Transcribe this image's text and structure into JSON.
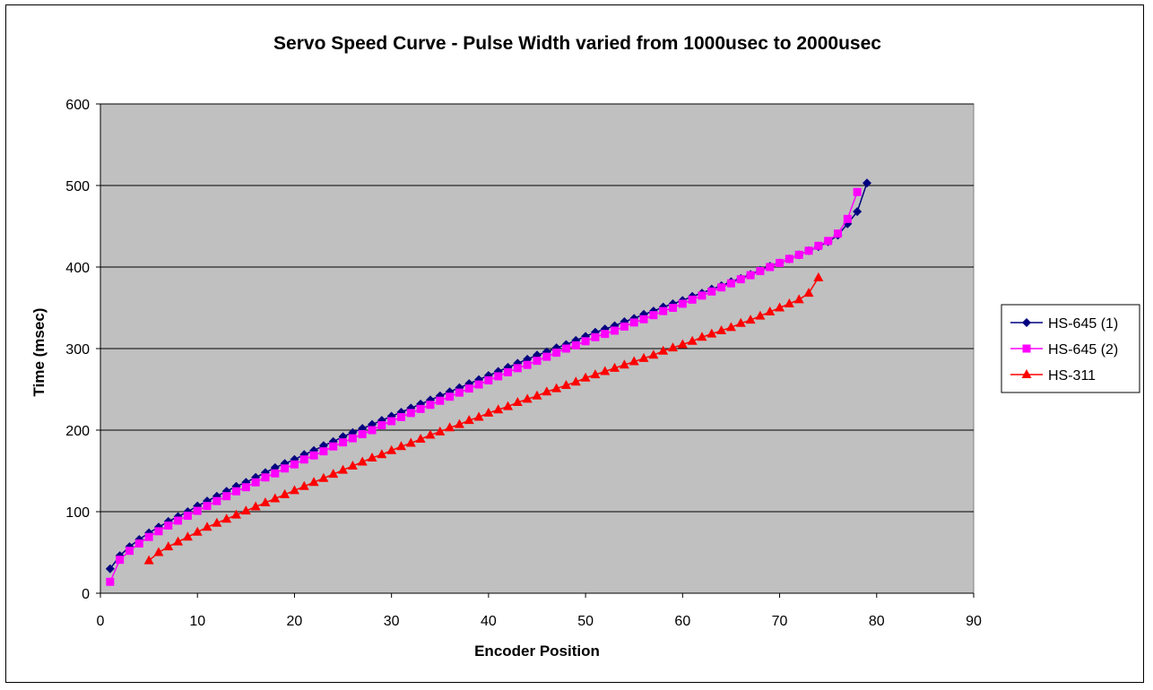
{
  "chart_data": {
    "type": "scatter",
    "title": "Servo Speed Curve - Pulse Width varied from 1000usec to 2000usec",
    "xlabel": "Encoder Position",
    "ylabel": "Time (msec)",
    "xlim": [
      0,
      90
    ],
    "ylim": [
      0,
      600
    ],
    "xticks": [
      "0",
      "10",
      "20",
      "30",
      "40",
      "50",
      "60",
      "70",
      "80",
      "90"
    ],
    "yticks": [
      "0",
      "100",
      "200",
      "300",
      "400",
      "500",
      "600"
    ],
    "plot_background": "#c0c0c0",
    "grid": "horizontal major lines",
    "legend_position": "right",
    "series": [
      {
        "name": "HS-645 (1)",
        "color": "#000080",
        "marker": "diamond",
        "x": [
          1,
          2,
          3,
          4,
          5,
          6,
          7,
          8,
          9,
          10,
          11,
          12,
          13,
          14,
          15,
          16,
          17,
          18,
          19,
          20,
          21,
          22,
          23,
          24,
          25,
          26,
          27,
          28,
          29,
          30,
          31,
          32,
          33,
          34,
          35,
          36,
          37,
          38,
          39,
          40,
          41,
          42,
          43,
          44,
          45,
          46,
          47,
          48,
          49,
          50,
          51,
          52,
          53,
          54,
          55,
          56,
          57,
          58,
          59,
          60,
          61,
          62,
          63,
          64,
          65,
          66,
          67,
          68,
          69,
          70,
          71,
          72,
          73,
          74,
          75,
          76,
          77,
          78,
          79
        ],
        "y": [
          30,
          46,
          57,
          66,
          74,
          81,
          88,
          94,
          100,
          107,
          113,
          119,
          125,
          131,
          136,
          142,
          148,
          154,
          159,
          164,
          170,
          175,
          181,
          186,
          192,
          197,
          202,
          207,
          212,
          217,
          222,
          227,
          232,
          237,
          242,
          247,
          252,
          257,
          262,
          267,
          272,
          277,
          282,
          287,
          292,
          296,
          301,
          305,
          310,
          315,
          320,
          324,
          328,
          333,
          337,
          342,
          346,
          351,
          355,
          359,
          364,
          368,
          373,
          377,
          382,
          386,
          391,
          396,
          401,
          405,
          410,
          415,
          420,
          425,
          431,
          439,
          453,
          468,
          503
        ]
      },
      {
        "name": "HS-645 (2)",
        "color": "#ff00ff",
        "marker": "square",
        "x": [
          1,
          2,
          3,
          4,
          5,
          6,
          7,
          8,
          9,
          10,
          11,
          12,
          13,
          14,
          15,
          16,
          17,
          18,
          19,
          20,
          21,
          22,
          23,
          24,
          25,
          26,
          27,
          28,
          29,
          30,
          31,
          32,
          33,
          34,
          35,
          36,
          37,
          38,
          39,
          40,
          41,
          42,
          43,
          44,
          45,
          46,
          47,
          48,
          49,
          50,
          51,
          52,
          53,
          54,
          55,
          56,
          57,
          58,
          59,
          60,
          61,
          62,
          63,
          64,
          65,
          66,
          67,
          68,
          69,
          70,
          71,
          72,
          73,
          74,
          75,
          76,
          77,
          78
        ],
        "y": [
          14,
          41,
          52,
          61,
          69,
          76,
          83,
          89,
          95,
          101,
          107,
          113,
          119,
          125,
          130,
          136,
          142,
          147,
          153,
          158,
          164,
          169,
          174,
          180,
          185,
          190,
          195,
          200,
          206,
          211,
          216,
          221,
          226,
          231,
          236,
          241,
          246,
          251,
          256,
          261,
          266,
          271,
          276,
          280,
          285,
          290,
          295,
          300,
          304,
          309,
          314,
          318,
          322,
          327,
          332,
          336,
          341,
          346,
          350,
          355,
          360,
          365,
          370,
          375,
          380,
          385,
          390,
          395,
          400,
          405,
          410,
          415,
          420,
          426,
          432,
          441,
          459,
          492
        ]
      },
      {
        "name": "HS-311",
        "color": "#ff0000",
        "marker": "triangle",
        "x": [
          5,
          6,
          7,
          8,
          9,
          10,
          11,
          12,
          13,
          14,
          15,
          16,
          17,
          18,
          19,
          20,
          21,
          22,
          23,
          24,
          25,
          26,
          27,
          28,
          29,
          30,
          31,
          32,
          33,
          34,
          35,
          36,
          37,
          38,
          39,
          40,
          41,
          42,
          43,
          44,
          45,
          46,
          47,
          48,
          49,
          50,
          51,
          52,
          53,
          54,
          55,
          56,
          57,
          58,
          59,
          60,
          61,
          62,
          63,
          64,
          65,
          66,
          67,
          68,
          69,
          70,
          71,
          72,
          73,
          74
        ],
        "y": [
          40,
          50,
          57,
          63,
          69,
          75,
          81,
          86,
          91,
          96,
          101,
          106,
          111,
          116,
          121,
          126,
          131,
          136,
          141,
          146,
          151,
          156,
          161,
          166,
          170,
          175,
          180,
          184,
          189,
          194,
          198,
          203,
          207,
          212,
          216,
          221,
          225,
          229,
          234,
          238,
          242,
          247,
          251,
          255,
          259,
          264,
          268,
          272,
          276,
          280,
          284,
          288,
          292,
          297,
          301,
          305,
          309,
          314,
          318,
          322,
          326,
          331,
          335,
          340,
          345,
          350,
          355,
          360,
          368,
          387
        ]
      }
    ]
  }
}
